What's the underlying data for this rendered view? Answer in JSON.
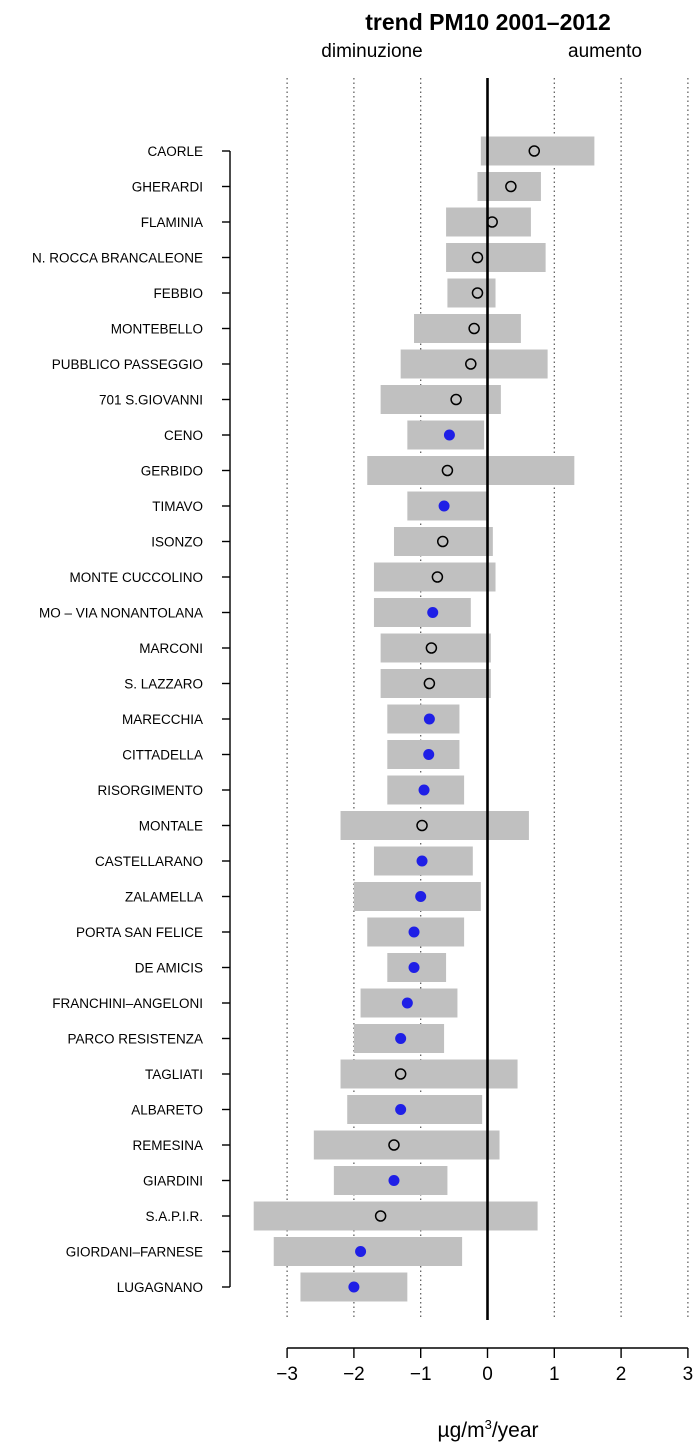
{
  "chart_data": {
    "type": "bar",
    "title": "trend PM10 2001–2012",
    "subtitle_left": "diminuzione",
    "subtitle_right": "aumento",
    "xlabel_parts": [
      "µg/m",
      "3",
      "/year"
    ],
    "xlim": [
      -3,
      3
    ],
    "x_ticks": [
      -3,
      -2,
      -1,
      0,
      1,
      2,
      3
    ],
    "x_tick_labels": [
      "−3",
      "−2",
      "−1",
      "0",
      "1",
      "2",
      "3"
    ],
    "grid": "vertical dotted at integer ticks",
    "colors": {
      "interval": "#c0c0c0",
      "significant_point": "#1f1fe6",
      "non_significant_point": "#000000",
      "zero_line": "#000000"
    },
    "stations": [
      {
        "name": "CAORLE",
        "estimate": 0.7,
        "low": -0.1,
        "high": 1.6,
        "significant": false
      },
      {
        "name": "GHERARDI",
        "estimate": 0.35,
        "low": -0.15,
        "high": 0.8,
        "significant": false
      },
      {
        "name": "FLAMINIA",
        "estimate": 0.07,
        "low": -0.62,
        "high": 0.65,
        "significant": false
      },
      {
        "name": "N. ROCCA BRANCALEONE",
        "estimate": -0.15,
        "low": -0.62,
        "high": 0.87,
        "significant": false
      },
      {
        "name": "FEBBIO",
        "estimate": -0.15,
        "low": -0.6,
        "high": 0.12,
        "significant": false
      },
      {
        "name": "MONTEBELLO",
        "estimate": -0.2,
        "low": -1.1,
        "high": 0.5,
        "significant": false
      },
      {
        "name": "PUBBLICO PASSEGGIO",
        "estimate": -0.25,
        "low": -1.3,
        "high": 0.9,
        "significant": false
      },
      {
        "name": "701 S.GIOVANNI",
        "estimate": -0.47,
        "low": -1.6,
        "high": 0.2,
        "significant": false
      },
      {
        "name": "CENO",
        "estimate": -0.57,
        "low": -1.2,
        "high": -0.05,
        "significant": true
      },
      {
        "name": "GERBIDO",
        "estimate": -0.6,
        "low": -1.8,
        "high": 1.3,
        "significant": false
      },
      {
        "name": "TIMAVO",
        "estimate": -0.65,
        "low": -1.2,
        "high": 0.0,
        "significant": true
      },
      {
        "name": "ISONZO",
        "estimate": -0.67,
        "low": -1.4,
        "high": 0.08,
        "significant": false
      },
      {
        "name": "MONTE CUCCOLINO",
        "estimate": -0.75,
        "low": -1.7,
        "high": 0.12,
        "significant": false
      },
      {
        "name": "MO – VIA NONANTOLANA",
        "estimate": -0.82,
        "low": -1.7,
        "high": -0.25,
        "significant": true
      },
      {
        "name": "MARCONI",
        "estimate": -0.84,
        "low": -1.6,
        "high": 0.05,
        "significant": false
      },
      {
        "name": "S. LAZZARO",
        "estimate": -0.87,
        "low": -1.6,
        "high": 0.05,
        "significant": false
      },
      {
        "name": "MARECCHIA",
        "estimate": -0.87,
        "low": -1.5,
        "high": -0.42,
        "significant": true
      },
      {
        "name": "CITTADELLA",
        "estimate": -0.88,
        "low": -1.5,
        "high": -0.42,
        "significant": true
      },
      {
        "name": "RISORGIMENTO",
        "estimate": -0.95,
        "low": -1.5,
        "high": -0.35,
        "significant": true
      },
      {
        "name": "MONTALE",
        "estimate": -0.98,
        "low": -2.2,
        "high": 0.62,
        "significant": false
      },
      {
        "name": "CASTELLARANO",
        "estimate": -0.98,
        "low": -1.7,
        "high": -0.22,
        "significant": true
      },
      {
        "name": "ZALAMELLA",
        "estimate": -1.0,
        "low": -2.0,
        "high": -0.1,
        "significant": true
      },
      {
        "name": "PORTA SAN FELICE",
        "estimate": -1.1,
        "low": -1.8,
        "high": -0.35,
        "significant": true
      },
      {
        "name": "DE AMICIS",
        "estimate": -1.1,
        "low": -1.5,
        "high": -0.62,
        "significant": true
      },
      {
        "name": "FRANCHINI–ANGELONI",
        "estimate": -1.2,
        "low": -1.9,
        "high": -0.45,
        "significant": true
      },
      {
        "name": "PARCO RESISTENZA",
        "estimate": -1.3,
        "low": -2.0,
        "high": -0.65,
        "significant": true
      },
      {
        "name": "TAGLIATI",
        "estimate": -1.3,
        "low": -2.2,
        "high": 0.45,
        "significant": false
      },
      {
        "name": "ALBARETO",
        "estimate": -1.3,
        "low": -2.1,
        "high": -0.08,
        "significant": true
      },
      {
        "name": "REMESINA",
        "estimate": -1.4,
        "low": -2.6,
        "high": 0.18,
        "significant": false
      },
      {
        "name": "GIARDINI",
        "estimate": -1.4,
        "low": -2.3,
        "high": -0.6,
        "significant": true
      },
      {
        "name": "S.A.P.I.R.",
        "estimate": -1.6,
        "low": -3.5,
        "high": 0.75,
        "significant": false
      },
      {
        "name": "GIORDANI–FARNESE",
        "estimate": -1.9,
        "low": -3.2,
        "high": -0.38,
        "significant": true
      },
      {
        "name": "LUGAGNANO",
        "estimate": -2.0,
        "low": -2.8,
        "high": -1.2,
        "significant": true
      }
    ]
  }
}
